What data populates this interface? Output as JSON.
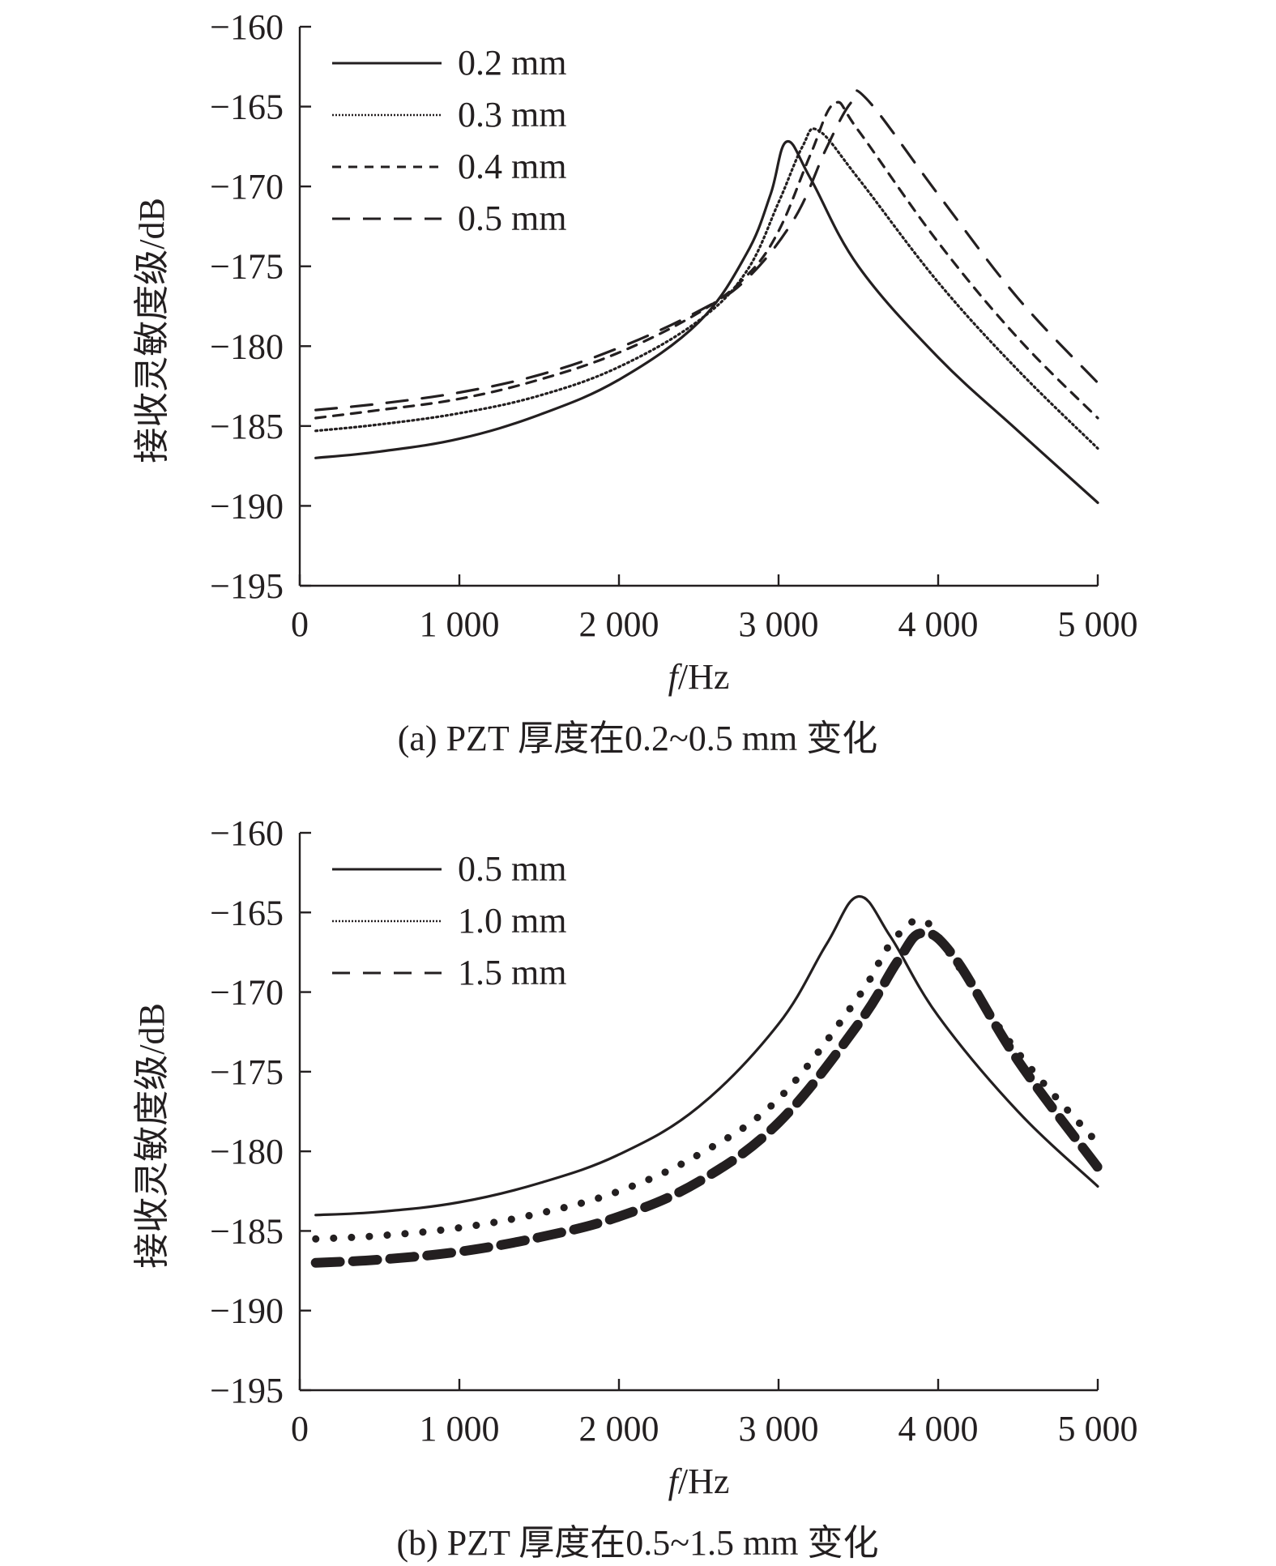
{
  "chart_data": [
    {
      "type": "line",
      "caption": "(a) PZT 厚度在0.2~0.5 mm 变化",
      "xlabel_var": "f",
      "xlabel_unit": "/Hz",
      "ylabel": "接收灵敏度级/dB",
      "xlim": [
        0,
        5000
      ],
      "ylim": [
        -195,
        -160
      ],
      "xticks": [
        0,
        1000,
        2000,
        3000,
        4000,
        5000
      ],
      "xtick_labels": [
        "0",
        "1 000",
        "2 000",
        "3 000",
        "4 000",
        "5 000"
      ],
      "yticks": [
        -160,
        -165,
        -170,
        -175,
        -180,
        -185,
        -190,
        -195
      ],
      "ytick_labels": [
        "−160",
        "−165",
        "−170",
        "−175",
        "−180",
        "−185",
        "−190",
        "−195"
      ],
      "legend_position": "top-left",
      "grid": false,
      "series": [
        {
          "name": "0.2 mm",
          "style": "solid",
          "x": [
            100,
            500,
            1000,
            1500,
            2000,
            2500,
            2800,
            2950,
            3050,
            3200,
            3500,
            4000,
            4500,
            5000
          ],
          "y": [
            -187.0,
            -186.6,
            -185.8,
            -184.3,
            -182.1,
            -178.5,
            -174.2,
            -170.5,
            -167.2,
            -169.5,
            -175.0,
            -180.7,
            -185.3,
            -189.8
          ]
        },
        {
          "name": "0.3 mm",
          "style": "dotted",
          "x": [
            100,
            500,
            1000,
            1500,
            2000,
            2500,
            2800,
            3000,
            3150,
            3250,
            3500,
            4000,
            4500,
            5000
          ],
          "y": [
            -185.3,
            -184.9,
            -184.2,
            -183.1,
            -181.3,
            -178.4,
            -175.3,
            -171.0,
            -167.5,
            -166.5,
            -169.5,
            -176.0,
            -181.5,
            -186.4
          ]
        },
        {
          "name": "0.4 mm",
          "style": "short-dash",
          "x": [
            100,
            500,
            1000,
            1500,
            2000,
            2500,
            2800,
            3000,
            3200,
            3350,
            3500,
            4000,
            4500,
            5000
          ],
          "y": [
            -184.5,
            -184.0,
            -183.3,
            -182.1,
            -180.4,
            -177.9,
            -175.6,
            -172.8,
            -168.0,
            -164.8,
            -166.5,
            -173.5,
            -179.5,
            -184.5
          ]
        },
        {
          "name": "0.5 mm",
          "style": "long-dash",
          "x": [
            100,
            500,
            1000,
            1500,
            2000,
            2500,
            2800,
            3100,
            3300,
            3450,
            3550,
            4000,
            4500,
            5000
          ],
          "y": [
            -184.0,
            -183.6,
            -182.9,
            -181.8,
            -180.1,
            -177.8,
            -175.8,
            -172.0,
            -167.6,
            -164.8,
            -164.5,
            -170.5,
            -177.0,
            -182.3
          ]
        }
      ]
    },
    {
      "type": "line",
      "caption": "(b) PZT 厚度在0.5~1.5 mm 变化",
      "xlabel_var": "f",
      "xlabel_unit": "/Hz",
      "ylabel": "接收灵敏度级/dB",
      "xlim": [
        0,
        5000
      ],
      "ylim": [
        -195,
        -160
      ],
      "xticks": [
        0,
        1000,
        2000,
        3000,
        4000,
        5000
      ],
      "xtick_labels": [
        "0",
        "1 000",
        "2 000",
        "3 000",
        "4 000",
        "5 000"
      ],
      "yticks": [
        -160,
        -165,
        -170,
        -175,
        -180,
        -185,
        -190,
        -195
      ],
      "ytick_labels": [
        "−160",
        "−165",
        "−170",
        "−175",
        "−180",
        "−185",
        "−190",
        "−195"
      ],
      "legend_position": "top-left",
      "grid": false,
      "series": [
        {
          "name": "0.5 mm",
          "style": "solid",
          "x": [
            100,
            500,
            1000,
            1500,
            2000,
            2500,
            3000,
            3300,
            3500,
            3700,
            4000,
            4500,
            5000
          ],
          "y": [
            -184.0,
            -183.8,
            -183.2,
            -182.0,
            -180.2,
            -177.2,
            -172.0,
            -167.0,
            -164.0,
            -166.5,
            -171.5,
            -177.5,
            -182.2
          ]
        },
        {
          "name": "1.0 mm",
          "style": "dotted",
          "x": [
            100,
            500,
            1000,
            1500,
            2000,
            2500,
            3000,
            3500,
            3700,
            3900,
            4100,
            4500,
            5000
          ],
          "y": [
            -185.5,
            -185.3,
            -184.8,
            -183.9,
            -182.5,
            -180.2,
            -176.7,
            -170.3,
            -167.0,
            -165.5,
            -168.0,
            -173.8,
            -179.5
          ]
        },
        {
          "name": "1.5 mm",
          "style": "long-dash",
          "x": [
            100,
            500,
            1000,
            1500,
            2000,
            2500,
            3000,
            3500,
            3750,
            3900,
            4100,
            4500,
            5000
          ],
          "y": [
            -187.0,
            -186.8,
            -186.3,
            -185.4,
            -184.1,
            -181.9,
            -178.2,
            -172.0,
            -168.0,
            -166.3,
            -167.8,
            -174.3,
            -181.0
          ]
        }
      ]
    }
  ]
}
